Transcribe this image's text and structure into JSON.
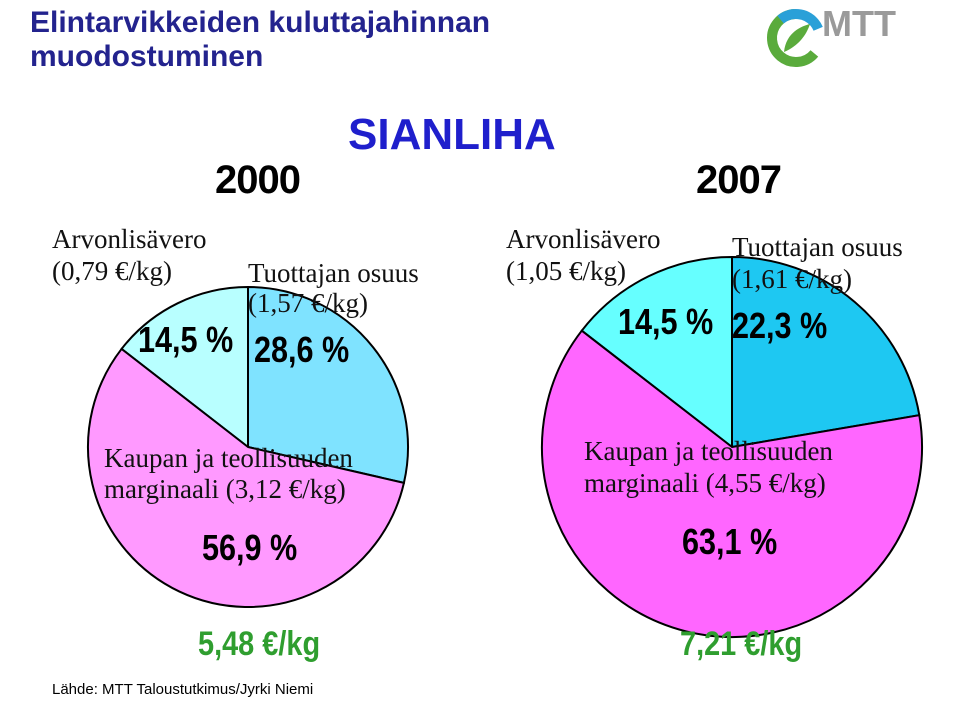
{
  "header": {
    "title_line1": "Elintarvikkeiden kuluttajahinnan",
    "title_line2": "muodostuminen",
    "subtitle": "SIANLIHA",
    "logo_text": "MTT"
  },
  "colors": {
    "title": "#23238e",
    "subtitle": "#1f1fcc",
    "price": "#2f9e2f",
    "vat_2000": "#b8ffff",
    "producer_2000": "#7fe3ff",
    "margin_2000": "#ff99ff",
    "vat_2007": "#66ffff",
    "producer_2007": "#1ec8f2",
    "margin_2007": "#ff66ff",
    "logo_green": "#5aab3c",
    "logo_blue": "#2aa0d8",
    "logo_gray": "#9a9a9a"
  },
  "chart_data": [
    {
      "type": "pie",
      "year": "2000",
      "total_label": "5,48 €/kg",
      "slices": [
        {
          "name": "Arvonlisävero",
          "detail": "(0,79 €/kg)",
          "value": 14.5,
          "label": "14,5 %"
        },
        {
          "name": "Tuottajan osuus",
          "detail": "(1,57 €/kg)",
          "value": 28.6,
          "label": "28,6 %"
        },
        {
          "name": "Kaupan ja teollisuuden",
          "detail": "marginaali (3,12 €/kg)",
          "value": 56.9,
          "label": "56,9 %"
        }
      ]
    },
    {
      "type": "pie",
      "year": "2007",
      "total_label": "7,21 €/kg",
      "slices": [
        {
          "name": "Arvonlisävero",
          "detail": "(1,05 €/kg)",
          "value": 14.5,
          "label": "14,5 %"
        },
        {
          "name": "Tuottajan osuus",
          "detail": "(1,61 €/kg)",
          "value": 22.3,
          "label": "22,3 %"
        },
        {
          "name": "Kaupan ja teollisuuden",
          "detail": "marginaali (4,55 €/kg)",
          "value": 63.1,
          "label": "63,1 %"
        }
      ]
    }
  ],
  "footer": {
    "source": "Lähde: MTT Taloustutkimus/Jyrki Niemi"
  }
}
